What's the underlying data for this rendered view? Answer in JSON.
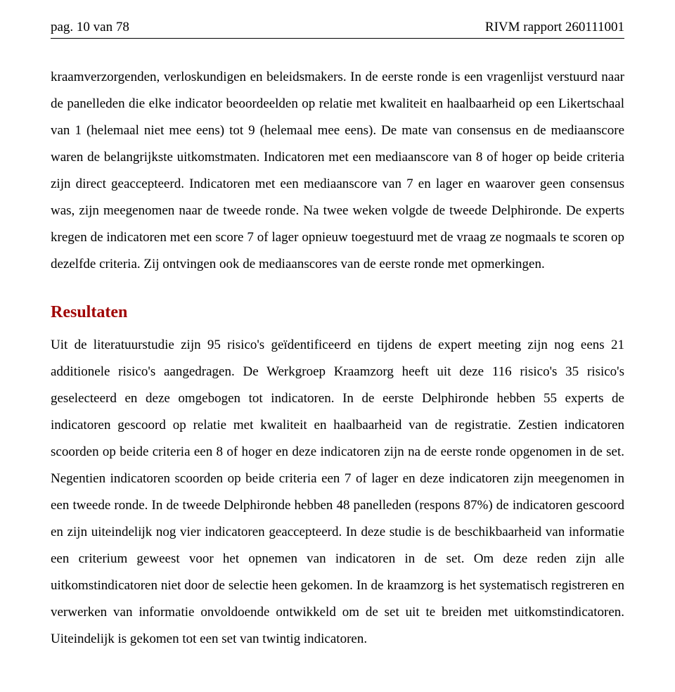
{
  "header": {
    "left": "pag. 10 van 78",
    "right": "RIVM rapport 260111001"
  },
  "paragraph1": "kraamverzorgenden, verloskundigen en beleidsmakers. In de eerste ronde is een vragenlijst verstuurd naar de panelleden die elke indicator beoordeelden op relatie met kwaliteit en haalbaarheid op een Likertschaal van 1 (helemaal niet mee eens) tot 9 (helemaal mee eens). De mate van consensus en de mediaanscore waren de belangrijkste uitkomstmaten. Indicatoren met een mediaanscore van 8 of hoger op beide criteria zijn direct geaccepteerd. Indicatoren met een mediaanscore van 7 en lager en waarover geen consensus was, zijn meegenomen naar de tweede ronde. Na twee weken volgde de tweede Delphironde. De experts kregen de indicatoren met een score 7 of lager opnieuw toegestuurd met de vraag ze nogmaals te scoren op dezelfde criteria. Zij ontvingen ook de mediaanscores van de eerste ronde met opmerkingen.",
  "heading": "Resultaten",
  "paragraph2": "Uit de literatuurstudie zijn 95 risico's geïdentificeerd en tijdens de expert meeting zijn nog eens 21 additionele risico's aangedragen. De Werkgroep Kraamzorg heeft uit deze 116 risico's 35 risico's geselecteerd en deze omgebogen tot indicatoren. In de eerste Delphironde hebben 55 experts de indicatoren gescoord op relatie met kwaliteit en haalbaarheid van de registratie. Zestien indicatoren scoorden op beide criteria een 8 of hoger en deze indicatoren zijn na de eerste ronde opgenomen in de set. Negentien indicatoren scoorden op beide criteria een 7 of lager en deze indicatoren zijn meegenomen in een tweede ronde. In de tweede Delphironde hebben 48 panelleden (respons 87%) de indicatoren gescoord en zijn uiteindelijk nog vier indicatoren geaccepteerd. In deze studie is de beschikbaarheid van informatie een criterium geweest voor het opnemen van indicatoren in de set. Om deze reden zijn alle uitkomstindicatoren niet door de selectie heen gekomen. In de kraamzorg is het systematisch registreren en verwerken van informatie onvoldoende ontwikkeld om de set uit te breiden met uitkomstindicatoren. Uiteindelijk is gekomen tot een set van twintig indicatoren."
}
